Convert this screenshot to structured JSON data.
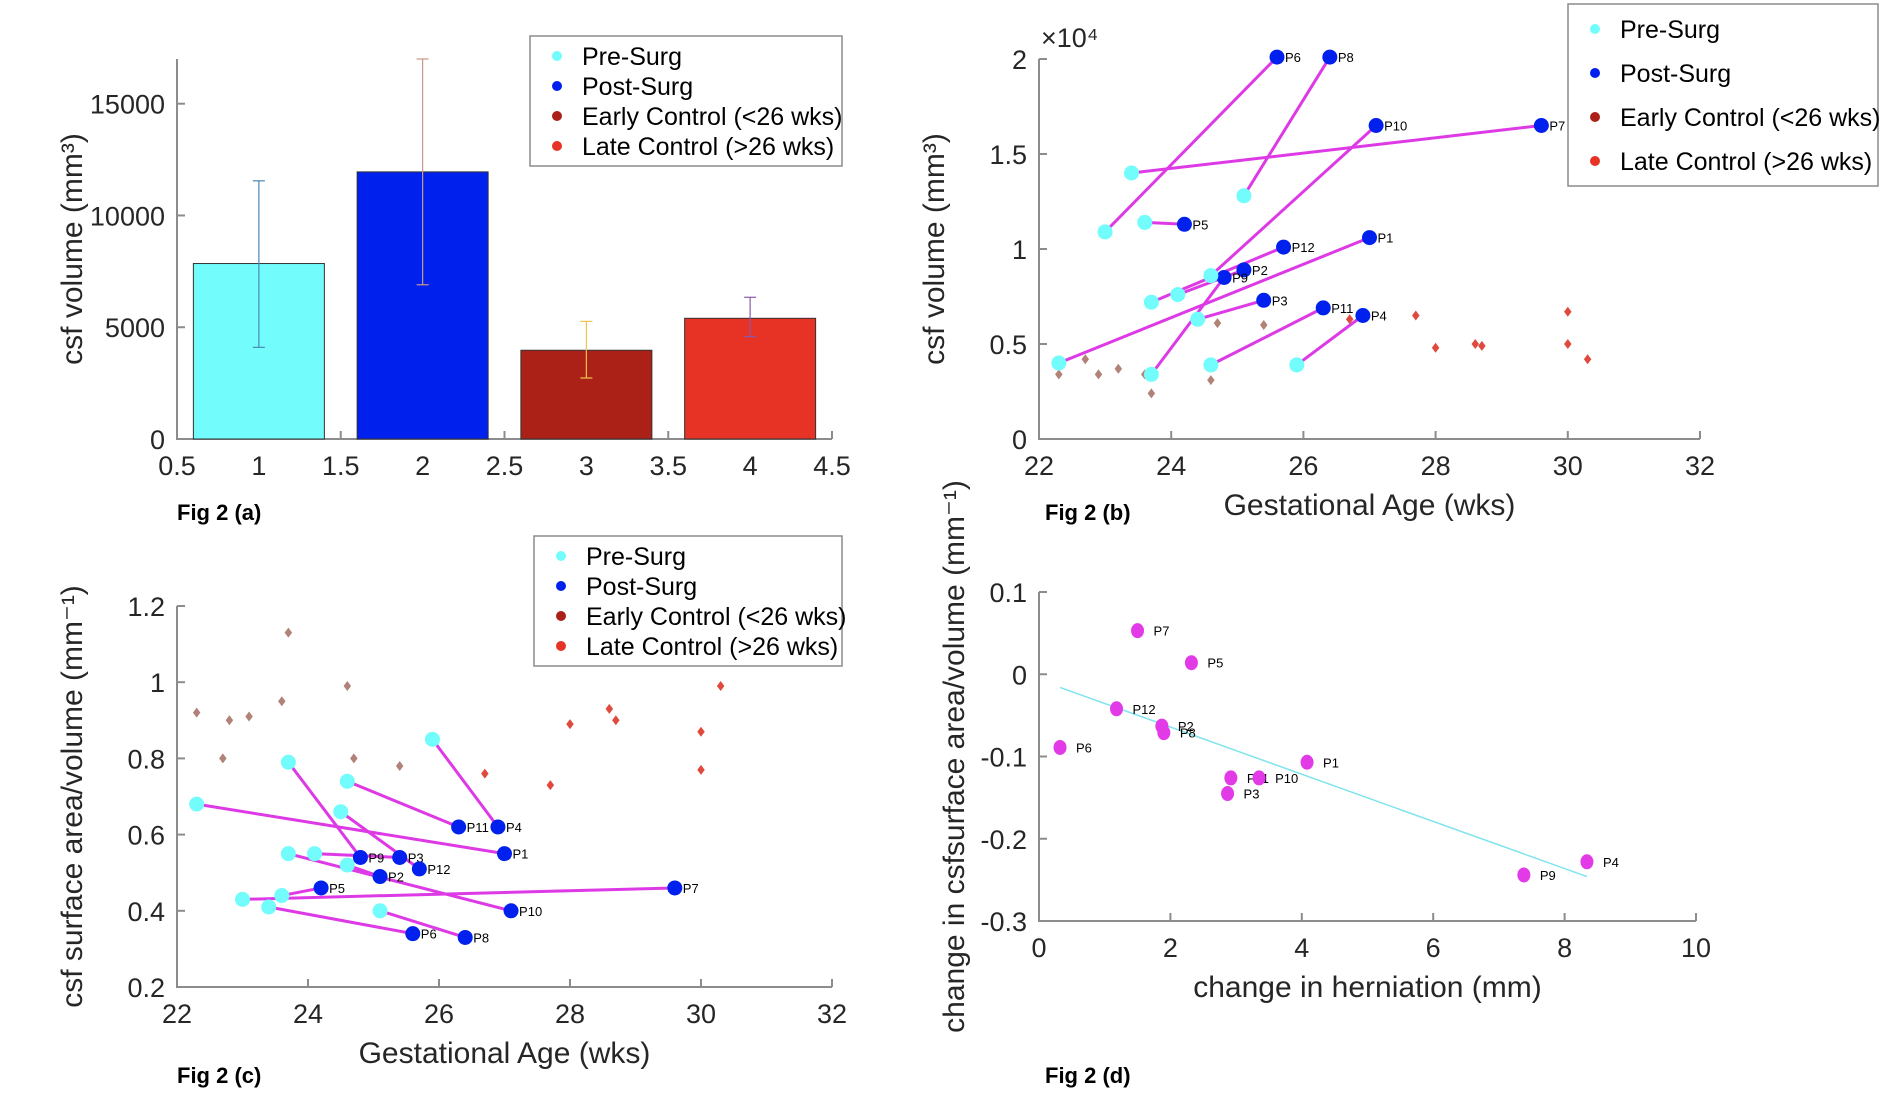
{
  "colors": {
    "pre": "#72fcfc",
    "post": "#0020ee",
    "early": "#ab2118",
    "late": "#e63326",
    "early_marker": "#b08278",
    "late_marker": "#e04a3e",
    "connector": "#dd3ae6",
    "fit": "#7fe4ec",
    "d_points": "#e33ae8"
  },
  "legend": [
    "Pre-Surg",
    "Post-Surg",
    "Early Control (<26 wks)",
    "Late Control (>26 wks)"
  ],
  "chart_data": [
    {
      "id": "a",
      "type": "bar",
      "fig_label": "Fig 2 (a)",
      "title": "",
      "xlabel": "",
      "ylabel": "csf volume (mm³)",
      "xlim": [
        0.5,
        4.5
      ],
      "ylim": [
        0,
        17000
      ],
      "xticks": [
        "0.5",
        "1",
        "1.5",
        "2",
        "2.5",
        "3",
        "3.5",
        "4",
        "4.5"
      ],
      "yticks": [
        "0",
        "5000",
        "10000",
        "15000"
      ],
      "categories": [
        1,
        2,
        3,
        4
      ],
      "series": [
        {
          "name": "Pre-Surg",
          "x": 1,
          "value": 7850,
          "err_low": 4100,
          "err_high": 11550
        },
        {
          "name": "Post-Surg",
          "x": 2,
          "value": 11950,
          "err_low": 6900,
          "err_high": 17000
        },
        {
          "name": "Early Control (<26 wks)",
          "x": 3,
          "value": 3970,
          "err_low": 2730,
          "err_high": 5260
        },
        {
          "name": "Late Control (>26 wks)",
          "x": 4,
          "value": 5400,
          "err_low": 4580,
          "err_high": 6340
        }
      ],
      "legend_position": "top-right"
    },
    {
      "id": "b",
      "type": "scatter",
      "fig_label": "Fig 2 (b)",
      "xlabel": "Gestational Age (wks)",
      "ylabel": "csf volume (mm³)",
      "y_multiplier": "×10⁴",
      "xlim": [
        22,
        32
      ],
      "ylim": [
        0,
        2
      ],
      "xticks": [
        "22",
        "24",
        "26",
        "28",
        "30",
        "32"
      ],
      "yticks": [
        "0",
        "0.5",
        "1",
        "1.5",
        "2"
      ],
      "patients": [
        {
          "id": "P1",
          "pre": [
            22.3,
            0.4
          ],
          "post": [
            27.0,
            1.06
          ]
        },
        {
          "id": "P2",
          "pre": [
            24.1,
            0.76
          ],
          "post": [
            25.1,
            0.89
          ]
        },
        {
          "id": "P3",
          "pre": [
            24.4,
            0.63
          ],
          "post": [
            25.4,
            0.73
          ]
        },
        {
          "id": "P4",
          "pre": [
            25.9,
            0.39
          ],
          "post": [
            26.9,
            0.65
          ]
        },
        {
          "id": "P5",
          "pre": [
            23.6,
            1.14
          ],
          "post": [
            24.2,
            1.13
          ]
        },
        {
          "id": "P6",
          "pre": [
            23.0,
            1.09
          ],
          "post": [
            25.6,
            2.01
          ]
        },
        {
          "id": "P7",
          "pre": [
            23.4,
            1.4
          ],
          "post": [
            29.6,
            1.65
          ]
        },
        {
          "id": "P8",
          "pre": [
            25.1,
            1.28
          ],
          "post": [
            26.4,
            2.01
          ]
        },
        {
          "id": "P9",
          "pre": [
            23.7,
            0.34
          ],
          "post": [
            24.8,
            0.85
          ]
        },
        {
          "id": "P10",
          "pre": [
            24.6,
            0.86
          ],
          "post": [
            27.1,
            1.65
          ]
        },
        {
          "id": "P11",
          "pre": [
            24.6,
            0.39
          ],
          "post": [
            26.3,
            0.69
          ]
        },
        {
          "id": "P12",
          "pre": [
            23.7,
            0.72
          ],
          "post": [
            25.7,
            1.01
          ]
        }
      ],
      "early_control": [
        [
          22.3,
          0.34
        ],
        [
          22.7,
          0.42
        ],
        [
          22.9,
          0.34
        ],
        [
          23.2,
          0.37
        ],
        [
          23.6,
          0.34
        ],
        [
          23.7,
          0.24
        ],
        [
          24.6,
          0.31
        ],
        [
          24.7,
          0.61
        ],
        [
          25.4,
          0.6
        ]
      ],
      "late_control": [
        [
          26.7,
          0.63
        ],
        [
          27.7,
          0.65
        ],
        [
          28.0,
          0.48
        ],
        [
          28.6,
          0.5
        ],
        [
          28.7,
          0.49
        ],
        [
          30.0,
          0.67
        ],
        [
          30.0,
          0.5
        ],
        [
          30.3,
          0.42
        ]
      ],
      "legend_position": "top-right (outside)"
    },
    {
      "id": "c",
      "type": "scatter",
      "fig_label": "Fig 2 (c)",
      "xlabel": "Gestational Age (wks)",
      "ylabel": "csf surface area/volume (mm⁻¹)",
      "xlim": [
        22,
        32
      ],
      "ylim": [
        0.2,
        1.2
      ],
      "xticks": [
        "22",
        "24",
        "26",
        "28",
        "30",
        "32"
      ],
      "yticks": [
        "0.2",
        "0.4",
        "0.6",
        "0.8",
        "1",
        "1.2"
      ],
      "patients": [
        {
          "id": "P1",
          "pre": [
            22.3,
            0.68
          ],
          "post": [
            27.0,
            0.55
          ]
        },
        {
          "id": "P2",
          "pre": [
            24.6,
            0.52
          ],
          "post": [
            25.1,
            0.49
          ]
        },
        {
          "id": "P3",
          "pre": [
            24.1,
            0.55
          ],
          "post": [
            25.4,
            0.54
          ]
        },
        {
          "id": "P4",
          "pre": [
            25.9,
            0.85
          ],
          "post": [
            26.9,
            0.62
          ]
        },
        {
          "id": "P5",
          "pre": [
            23.6,
            0.44
          ],
          "post": [
            24.2,
            0.46
          ]
        },
        {
          "id": "P6",
          "pre": [
            23.4,
            0.41
          ],
          "post": [
            25.6,
            0.34
          ]
        },
        {
          "id": "P7",
          "pre": [
            23.0,
            0.43
          ],
          "post": [
            29.6,
            0.46
          ]
        },
        {
          "id": "P8",
          "pre": [
            25.1,
            0.4
          ],
          "post": [
            26.4,
            0.33
          ]
        },
        {
          "id": "P9",
          "pre": [
            23.7,
            0.79
          ],
          "post": [
            24.8,
            0.54
          ]
        },
        {
          "id": "P10",
          "pre": [
            23.7,
            0.55
          ],
          "post": [
            27.1,
            0.4
          ]
        },
        {
          "id": "P11",
          "pre": [
            24.6,
            0.74
          ],
          "post": [
            26.3,
            0.62
          ]
        },
        {
          "id": "P12",
          "pre": [
            24.5,
            0.66
          ],
          "post": [
            25.7,
            0.51
          ]
        }
      ],
      "early_control": [
        [
          22.3,
          0.92
        ],
        [
          22.7,
          0.8
        ],
        [
          22.8,
          0.9
        ],
        [
          23.1,
          0.91
        ],
        [
          23.6,
          0.95
        ],
        [
          23.7,
          1.13
        ],
        [
          24.6,
          0.99
        ],
        [
          24.7,
          0.8
        ],
        [
          25.4,
          0.78
        ]
      ],
      "late_control": [
        [
          26.7,
          0.76
        ],
        [
          27.7,
          0.73
        ],
        [
          28.0,
          0.89
        ],
        [
          28.6,
          0.93
        ],
        [
          28.7,
          0.9
        ],
        [
          30.0,
          0.87
        ],
        [
          30.0,
          0.77
        ],
        [
          30.3,
          0.99
        ]
      ],
      "legend_position": "top-right"
    },
    {
      "id": "d",
      "type": "scatter",
      "fig_label": "Fig 2 (d)",
      "xlabel": "change in herniation (mm)",
      "ylabel": "change in csfsurface area/volume (mm⁻¹)",
      "xlim": [
        0,
        10
      ],
      "ylim": [
        -0.3,
        0.1
      ],
      "xticks": [
        "0",
        "2",
        "4",
        "6",
        "8",
        "10"
      ],
      "yticks": [
        "-0.3",
        "-0.2",
        "-0.1",
        "0",
        "0.1"
      ],
      "points": [
        {
          "id": "P7",
          "x": 1.5,
          "y": 0.053
        },
        {
          "id": "P5",
          "x": 2.32,
          "y": 0.014
        },
        {
          "id": "P12",
          "x": 1.18,
          "y": -0.042
        },
        {
          "id": "P2",
          "x": 1.87,
          "y": -0.063
        },
        {
          "id": "P8",
          "x": 1.9,
          "y": -0.071
        },
        {
          "id": "P6",
          "x": 0.32,
          "y": -0.089
        },
        {
          "id": "P1",
          "x": 4.08,
          "y": -0.107
        },
        {
          "id": "P11",
          "x": 2.92,
          "y": -0.126
        },
        {
          "id": "P10",
          "x": 3.35,
          "y": -0.126
        },
        {
          "id": "P3",
          "x": 2.87,
          "y": -0.145
        },
        {
          "id": "P4",
          "x": 8.34,
          "y": -0.228
        },
        {
          "id": "P9",
          "x": 7.38,
          "y": -0.244
        }
      ],
      "fit_line": {
        "x": [
          0.32,
          8.34
        ],
        "y": [
          -0.016,
          -0.246
        ]
      }
    }
  ]
}
